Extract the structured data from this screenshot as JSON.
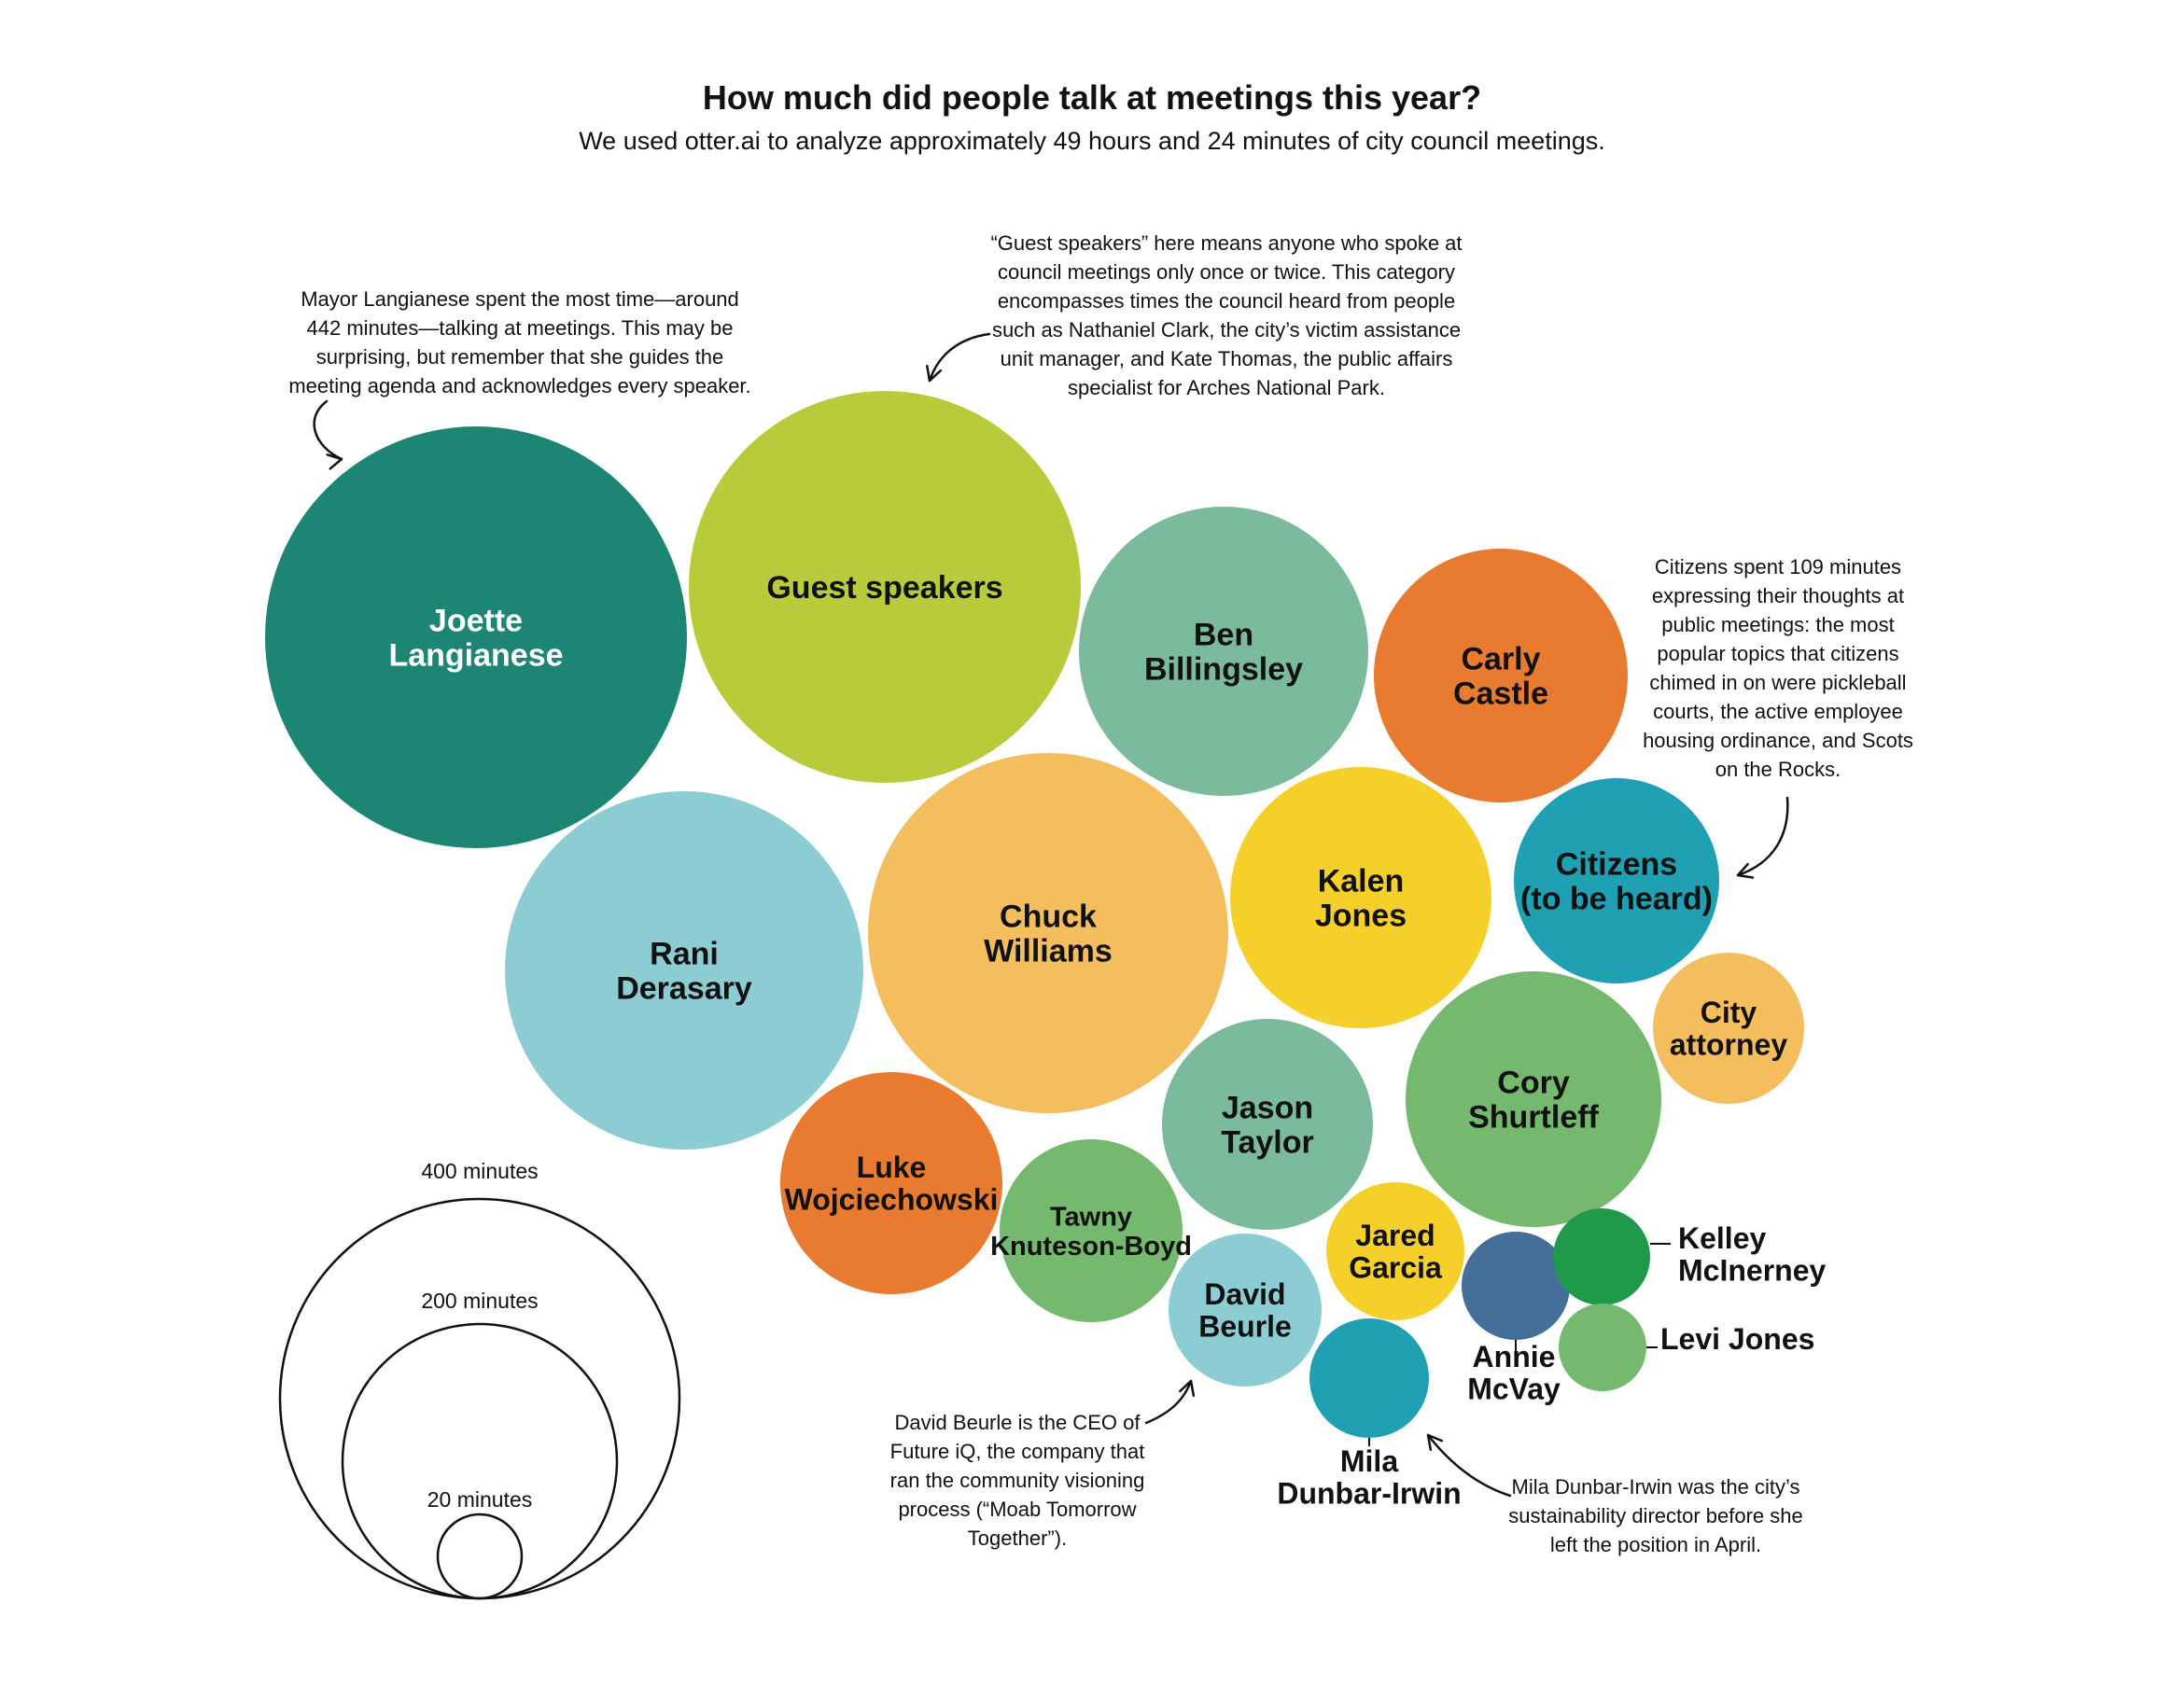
{
  "chart_data": {
    "type": "bubble",
    "title": "How much did people talk at meetings this year?",
    "subtitle": "We used otter.ai to analyze approximately 49 hours and 24 minutes of city council meetings.",
    "unit": "minutes",
    "bubbles": [
      {
        "name": "Joette Langianese",
        "label": [
          "Joette",
          "Langianese"
        ],
        "color": "#1d8574"
      },
      {
        "name": "Guest speakers",
        "label": [
          "Guest speakers"
        ],
        "color": "#b8cc3b"
      },
      {
        "name": "Ben Billingsley",
        "label": [
          "Ben",
          "Billingsley"
        ],
        "color": "#7bba9c"
      },
      {
        "name": "Carly Castle",
        "label": [
          "Carly",
          "Castle"
        ],
        "color": "#e97b30"
      },
      {
        "name": "Rani Derasary",
        "label": [
          "Rani",
          "Derasary"
        ],
        "color": "#8ccdd4"
      },
      {
        "name": "Chuck Williams",
        "label": [
          "Chuck",
          "Williams"
        ],
        "color": "#f4be5e"
      },
      {
        "name": "Kalen Jones",
        "label": [
          "Kalen",
          "Jones"
        ],
        "color": "#f6d02a"
      },
      {
        "name": "Citizens (to be heard)",
        "label": [
          "Citizens",
          "(to be heard)"
        ],
        "color": "#1fa0b3"
      },
      {
        "name": "City attorney",
        "label": [
          "City",
          "attorney"
        ],
        "color": "#f4be5e"
      },
      {
        "name": "Cory Shurtleff",
        "label": [
          "Cory",
          "Shurtleff"
        ],
        "color": "#74b96d"
      },
      {
        "name": "Jason Taylor",
        "label": [
          "Jason",
          "Taylor"
        ],
        "color": "#7bba9c"
      },
      {
        "name": "Luke Wojciechowski",
        "label": [
          "Luke",
          "Wojciechowski"
        ],
        "color": "#e97b30"
      },
      {
        "name": "Tawny Knuteson-Boyd",
        "label": [
          "Tawny",
          "Knuteson-Boyd"
        ],
        "color": "#74b96d"
      },
      {
        "name": "David Beurle",
        "label": [
          "David",
          "Beurle"
        ],
        "color": "#8ccdd4"
      },
      {
        "name": "Jared Garcia",
        "label": [
          "Jared",
          "Garcia"
        ],
        "color": "#f6d02a"
      },
      {
        "name": "Annie McVay",
        "label": [
          "Annie",
          "McVay"
        ],
        "color": "#436f98"
      },
      {
        "name": "Kelley McInerney",
        "label": [
          "Kelley",
          "McInerney"
        ],
        "color": "#1e9a4a"
      },
      {
        "name": "Levi Jones",
        "label": [
          "Levi Jones"
        ],
        "color": "#74b96d"
      },
      {
        "name": "Mila Dunbar-Irwin",
        "label": [
          "Mila",
          "Dunbar-Irwin"
        ],
        "color": "#1fa0b3"
      }
    ],
    "annotations": [
      {
        "id": "mayor",
        "lines": [
          "Mayor Langianese spent the most time—around",
          "442 minutes—talking at meetings. This may be",
          "surprising, but remember that she guides the",
          "meeting agenda and acknowledges every speaker."
        ]
      },
      {
        "id": "guest",
        "lines": [
          "“Guest speakers” here means anyone who spoke at",
          "council meetings only once or twice. This category",
          "encompasses times the council heard from people",
          "such as Nathaniel Clark, the city’s victim assistance",
          "unit manager, and Kate Thomas, the public affairs",
          "specialist for Arches National Park."
        ]
      },
      {
        "id": "citizens",
        "lines": [
          "Citizens spent 109 minutes",
          "expressing their thoughts at",
          "public meetings: the most",
          "popular topics that citizens",
          "chimed in on were pickleball",
          "courts, the active employee",
          "housing ordinance, and Scots",
          "on the Rocks."
        ]
      },
      {
        "id": "beurle",
        "lines": [
          "David Beurle is the CEO of",
          "Future iQ, the company that",
          "ran the community visioning",
          "process (“Moab Tomorrow",
          "Together”)."
        ]
      },
      {
        "id": "mila",
        "lines": [
          "Mila Dunbar-Irwin was the city’s",
          "sustainability director before she",
          "left the position in April."
        ]
      }
    ],
    "legend": [
      {
        "label": "400 minutes",
        "minutes": 400
      },
      {
        "label": "200 minutes",
        "minutes": 200
      },
      {
        "label": "20 minutes",
        "minutes": 20
      }
    ]
  }
}
